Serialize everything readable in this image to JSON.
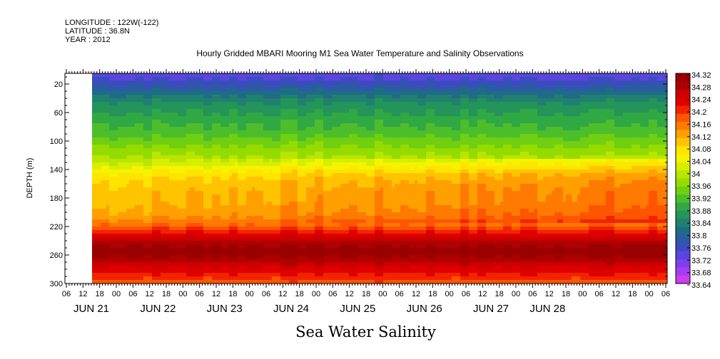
{
  "header": {
    "longitude": "LONGITUDE : 122W(-122)",
    "latitude": "LATITUDE : 36.8N",
    "year": "YEAR : 2012"
  },
  "chart_data": {
    "type": "heatmap",
    "title": "Hourly Gridded MBARI Mooring M1 Sea Water Temperature and Salinity Observations",
    "bottom_title": "Sea Water Salinity",
    "ylabel": "DEPTH (m)",
    "ylim": [
      300,
      5
    ],
    "y_ticks": [
      "20",
      "60",
      "100",
      "140",
      "180",
      "220",
      "260",
      "300"
    ],
    "x_hour_ticks": [
      "06",
      "12",
      "18",
      "00",
      "06",
      "12",
      "18",
      "00",
      "06",
      "12",
      "18",
      "00",
      "06",
      "12",
      "18",
      "00",
      "06",
      "12",
      "18",
      "00",
      "06",
      "12",
      "18",
      "00",
      "06",
      "12",
      "18",
      "00",
      "06",
      "12",
      "18",
      "00",
      "06",
      "12",
      "18",
      "00",
      "06"
    ],
    "x_date_labels": [
      "JUN 21",
      "JUN 22",
      "JUN 23",
      "JUN 24",
      "JUN 25",
      "JUN 26",
      "JUN 27",
      "JUN 28"
    ],
    "data_start": "JUN 21 13:00",
    "colorbar_labels": [
      "34.32",
      "34.28",
      "34.24",
      "34.2",
      "34.16",
      "34.12",
      "34.08",
      "34.04",
      "34",
      "33.96",
      "33.92",
      "33.88",
      "33.84",
      "33.8",
      "33.76",
      "33.72",
      "33.68",
      "33.64"
    ],
    "colorbar_colors": [
      "#9a0000",
      "#b00000",
      "#cc0000",
      "#e00000",
      "#f22400",
      "#ff5500",
      "#ff7a00",
      "#ffa000",
      "#ffc400",
      "#ffe400",
      "#f4f400",
      "#d8ee00",
      "#b8e600",
      "#95db00",
      "#70cf10",
      "#4cbe2c",
      "#30a844",
      "#24945a",
      "#1f8070",
      "#1e6c86",
      "#2b5ba0",
      "#3b4cc0",
      "#5a46de",
      "#7e40ee",
      "#a63cf2",
      "#cc3cf0"
    ],
    "profile_depths": [
      5,
      15,
      25,
      35,
      45,
      55,
      65,
      75,
      85,
      95,
      105,
      115,
      125,
      135,
      145,
      155,
      165,
      175,
      185,
      195,
      205,
      215,
      225,
      235,
      245,
      255,
      265,
      275,
      285,
      295,
      300
    ],
    "profile_values": [
      33.73,
      33.75,
      33.78,
      33.82,
      33.85,
      33.87,
      33.88,
      33.9,
      33.91,
      33.93,
      33.95,
      33.97,
      33.99,
      34.02,
      34.06,
      34.08,
      34.09,
      34.1,
      34.1,
      34.11,
      34.12,
      34.15,
      34.2,
      34.25,
      34.29,
      34.31,
      34.29,
      34.25,
      34.22,
      34.19,
      34.17
    ]
  }
}
